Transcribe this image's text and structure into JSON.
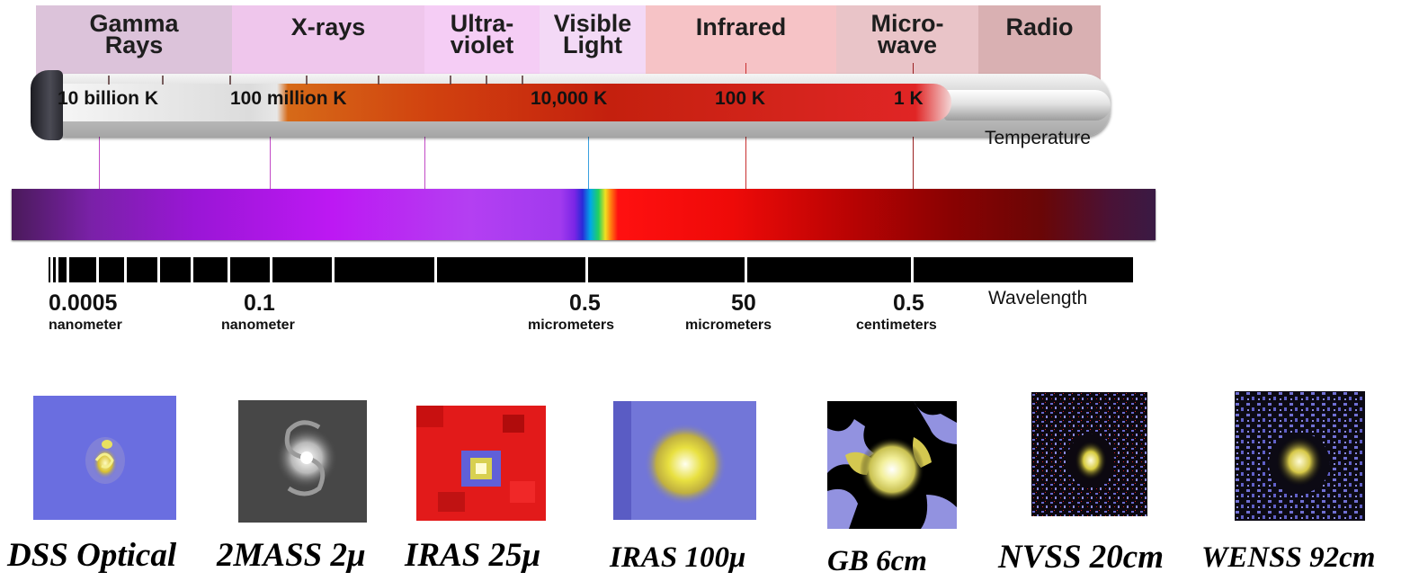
{
  "bands": [
    {
      "id": "gamma",
      "label_line1": "Gamma",
      "label_line2": "Rays",
      "color": "#dcc3da"
    },
    {
      "id": "xray",
      "label_line1": "X-rays",
      "label_line2": "",
      "color": "#efc6ec"
    },
    {
      "id": "uv",
      "label_line1": "Ultra-",
      "label_line2": "violet",
      "color": "#f5cdf5"
    },
    {
      "id": "visible",
      "label_line1": "Visible",
      "label_line2": "Light",
      "color": "#f3d9f6"
    },
    {
      "id": "infrared",
      "label_line1": "Infrared",
      "label_line2": "",
      "color": "#f6c3c6"
    },
    {
      "id": "microwave",
      "label_line1": "Micro-",
      "label_line2": "wave",
      "color": "#e9c4c8"
    },
    {
      "id": "radio",
      "label_line1": "Radio",
      "label_line2": "",
      "color": "#d9b0b2"
    }
  ],
  "temperature": {
    "title": "Temperature",
    "labels": [
      "10 billion K",
      "100 million K",
      "10,000 K",
      "100 K",
      "1 K"
    ]
  },
  "wavelength": {
    "title": "Wavelength",
    "marks": [
      {
        "value": "0.0005",
        "unit": "nanometer"
      },
      {
        "value": "0.1",
        "unit": "nanometer"
      },
      {
        "value": "0.5",
        "unit": "micrometers"
      },
      {
        "value": "50",
        "unit": "micrometers"
      },
      {
        "value": "0.5",
        "unit": "centimeters"
      }
    ]
  },
  "panels": [
    {
      "label": "DSS Optical"
    },
    {
      "label": "2MASS 2μ"
    },
    {
      "label": "IRAS 25μ"
    },
    {
      "label": "IRAS 100μ"
    },
    {
      "label": "GB 6cm"
    },
    {
      "label": "NVSS 20cm"
    },
    {
      "label": "WENSS 92cm"
    }
  ],
  "colors": {
    "connector_violet": "#c24ac6",
    "connector_red": "#c83030",
    "ruler": "#000000"
  }
}
